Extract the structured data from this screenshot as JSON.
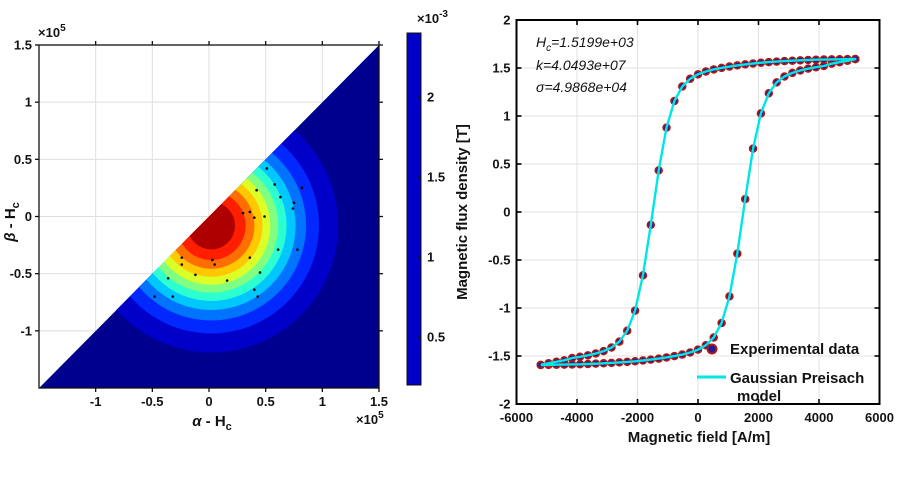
{
  "figure": {
    "background": "#ffffff"
  },
  "chart_data": [
    {
      "type": "heatmap",
      "subtype": "filled-contour-preisach-distribution",
      "xlabel": "α - H_c",
      "ylabel": "β - H_c",
      "xlabel_parts": {
        "sym": "α",
        "mid": " - H",
        "sub": "c"
      },
      "ylabel_parts": {
        "sym": "β",
        "mid": " - H",
        "sub": "c"
      },
      "x_multiplier": {
        "base": "×10",
        "exp": "5"
      },
      "y_multiplier": {
        "base": "×10",
        "exp": "5"
      },
      "xlim": [
        -150000,
        150000
      ],
      "ylim": [
        -150000,
        150000
      ],
      "x_ticks": [
        {
          "v": -100000,
          "label": "-1"
        },
        {
          "v": -50000,
          "label": "-0.5"
        },
        {
          "v": 0,
          "label": "0"
        },
        {
          "v": 50000,
          "label": "0.5"
        },
        {
          "v": 100000,
          "label": "1"
        },
        {
          "v": 150000,
          "label": "1.5"
        }
      ],
      "y_ticks": [
        {
          "v": 150000,
          "label": "1.5"
        },
        {
          "v": 100000,
          "label": "1"
        },
        {
          "v": 50000,
          "label": "0.5"
        },
        {
          "v": 0,
          "label": "0"
        },
        {
          "v": -50000,
          "label": "-0.5"
        },
        {
          "v": -100000,
          "label": "-1"
        }
      ],
      "grid_color": "#dedede",
      "domain_constraint": "beta <= alpha (lower triangle filled)",
      "distribution": {
        "center": [
          2000,
          -8000
        ],
        "sigma": 50000,
        "peak": 0.0024,
        "background_color": "#00008F",
        "bands": [
          {
            "level": 0.0002,
            "color": "#0000C8"
          },
          {
            "level": 0.0004,
            "color": "#0028FF"
          },
          {
            "level": 0.0006,
            "color": "#0073FF"
          },
          {
            "level": 0.0008,
            "color": "#00C8FF"
          },
          {
            "level": 0.001,
            "color": "#2CFFD0"
          },
          {
            "level": 0.0012,
            "color": "#80FF80"
          },
          {
            "level": 0.0014,
            "color": "#DCFF28"
          },
          {
            "level": 0.0016,
            "color": "#FFC800"
          },
          {
            "level": 0.0018,
            "color": "#FF6E00"
          },
          {
            "level": 0.002,
            "color": "#FF1E00"
          },
          {
            "level": 0.0022,
            "color": "#AE0000"
          }
        ]
      },
      "scatter_points_color": "#000000",
      "scatter_points_1e5": [
        [
          0.51,
          0.42
        ],
        [
          0.58,
          0.28
        ],
        [
          0.42,
          0.23
        ],
        [
          0.63,
          0.17
        ],
        [
          0.75,
          0.12
        ],
        [
          0.82,
          0.25
        ],
        [
          0.36,
          0.04
        ],
        [
          0.3,
          0.03
        ],
        [
          0.49,
          0.0
        ],
        [
          0.74,
          0.07
        ],
        [
          0.4,
          -0.01
        ],
        [
          0.61,
          -0.29
        ],
        [
          0.78,
          -0.29
        ],
        [
          0.36,
          -0.36
        ],
        [
          0.03,
          -0.38
        ],
        [
          -0.24,
          -0.42
        ],
        [
          0.05,
          -0.42
        ],
        [
          -0.12,
          -0.51
        ],
        [
          -0.24,
          -0.36
        ],
        [
          0.16,
          -0.56
        ],
        [
          0.45,
          -0.49
        ],
        [
          0.4,
          -0.64
        ],
        [
          0.43,
          -0.7
        ],
        [
          -0.36,
          -0.54
        ],
        [
          -0.48,
          -0.7
        ],
        [
          -0.32,
          -0.7
        ]
      ],
      "colorbar": {
        "multiplier": {
          "base": "×10",
          "exp": "-3"
        },
        "range": [
          0.0002,
          0.0024
        ],
        "ticks": [
          {
            "v": 0.0005,
            "label": "0.5"
          },
          {
            "v": 0.001,
            "label": "1"
          },
          {
            "v": 0.0015,
            "label": "1.5"
          },
          {
            "v": 0.002,
            "label": "2"
          }
        ]
      }
    },
    {
      "type": "line",
      "subtype": "hysteresis-loop",
      "xlabel": "Magnetic field [A/m]",
      "ylabel": "Magnetic flux density [T]",
      "xlim": [
        -6000,
        6000
      ],
      "ylim": [
        -2,
        2
      ],
      "x_ticks": [
        {
          "v": -6000,
          "label": "-6000"
        },
        {
          "v": -4000,
          "label": "-4000"
        },
        {
          "v": -2000,
          "label": "-2000"
        },
        {
          "v": 0,
          "label": "0"
        },
        {
          "v": 2000,
          "label": "2000"
        },
        {
          "v": 4000,
          "label": "4000"
        },
        {
          "v": 6000,
          "label": "6000"
        }
      ],
      "y_ticks": [
        {
          "v": 2,
          "label": "2"
        },
        {
          "v": 1.5,
          "label": "1.5"
        },
        {
          "v": 1,
          "label": "1"
        },
        {
          "v": 0.5,
          "label": "0.5"
        },
        {
          "v": 0,
          "label": "0"
        },
        {
          "v": -0.5,
          "label": "-0.5"
        },
        {
          "v": -1,
          "label": "-1"
        },
        {
          "v": -1.5,
          "label": "-1.5"
        },
        {
          "v": -2,
          "label": "-2"
        }
      ],
      "grid_color": "#e1e1e1",
      "annotations": [
        {
          "var": "H",
          "sub": "c",
          "value": "=1.5199e+03",
          "text": "H_c=1.5199e+03"
        },
        {
          "text": "k=4.0493e+07"
        },
        {
          "text": "σ=4.9868e+04"
        }
      ],
      "legend": [
        {
          "label": "Experimental data",
          "marker": "circle"
        },
        {
          "label_line1": "Gaussian Preisach",
          "label_line2": "model",
          "marker": "line"
        }
      ],
      "style": {
        "marker_face": "#1c1c96",
        "marker_edge": "#b01818",
        "model_line": "#00e6e6"
      },
      "loop": {
        "h": [
          -5200,
          -4940,
          -4680,
          -4420,
          -4160,
          -3900,
          -3640,
          -3380,
          -3120,
          -2860,
          -2600,
          -2340,
          -2080,
          -1820,
          -1560,
          -1300,
          -1040,
          -780,
          -520,
          -260,
          0,
          260,
          520,
          780,
          1040,
          1300,
          1560,
          1820,
          2080,
          2340,
          2600,
          2860,
          3120,
          3380,
          3640,
          3900,
          4160,
          4420,
          4680,
          4940,
          5200
        ],
        "b_ascending": [
          -1.594,
          -1.593,
          -1.591,
          -1.59,
          -1.588,
          -1.586,
          -1.583,
          -1.58,
          -1.576,
          -1.572,
          -1.567,
          -1.561,
          -1.555,
          -1.547,
          -1.538,
          -1.527,
          -1.515,
          -1.501,
          -1.485,
          -1.464,
          -1.434,
          -1.388,
          -1.307,
          -1.156,
          -0.879,
          -0.433,
          0.134,
          0.66,
          1.027,
          1.237,
          1.35,
          1.412,
          1.449,
          1.474,
          1.493,
          1.508,
          1.521,
          1.545,
          1.56,
          1.575,
          1.592
        ],
        "b_descending": [
          -1.592,
          -1.575,
          -1.56,
          -1.545,
          -1.521,
          -1.508,
          -1.493,
          -1.474,
          -1.449,
          -1.412,
          -1.35,
          -1.237,
          -1.027,
          -0.66,
          -0.134,
          0.433,
          0.879,
          1.156,
          1.307,
          1.388,
          1.434,
          1.464,
          1.485,
          1.501,
          1.515,
          1.527,
          1.538,
          1.547,
          1.555,
          1.561,
          1.567,
          1.572,
          1.576,
          1.58,
          1.583,
          1.586,
          1.588,
          1.59,
          1.591,
          1.593,
          1.594
        ]
      }
    }
  ]
}
